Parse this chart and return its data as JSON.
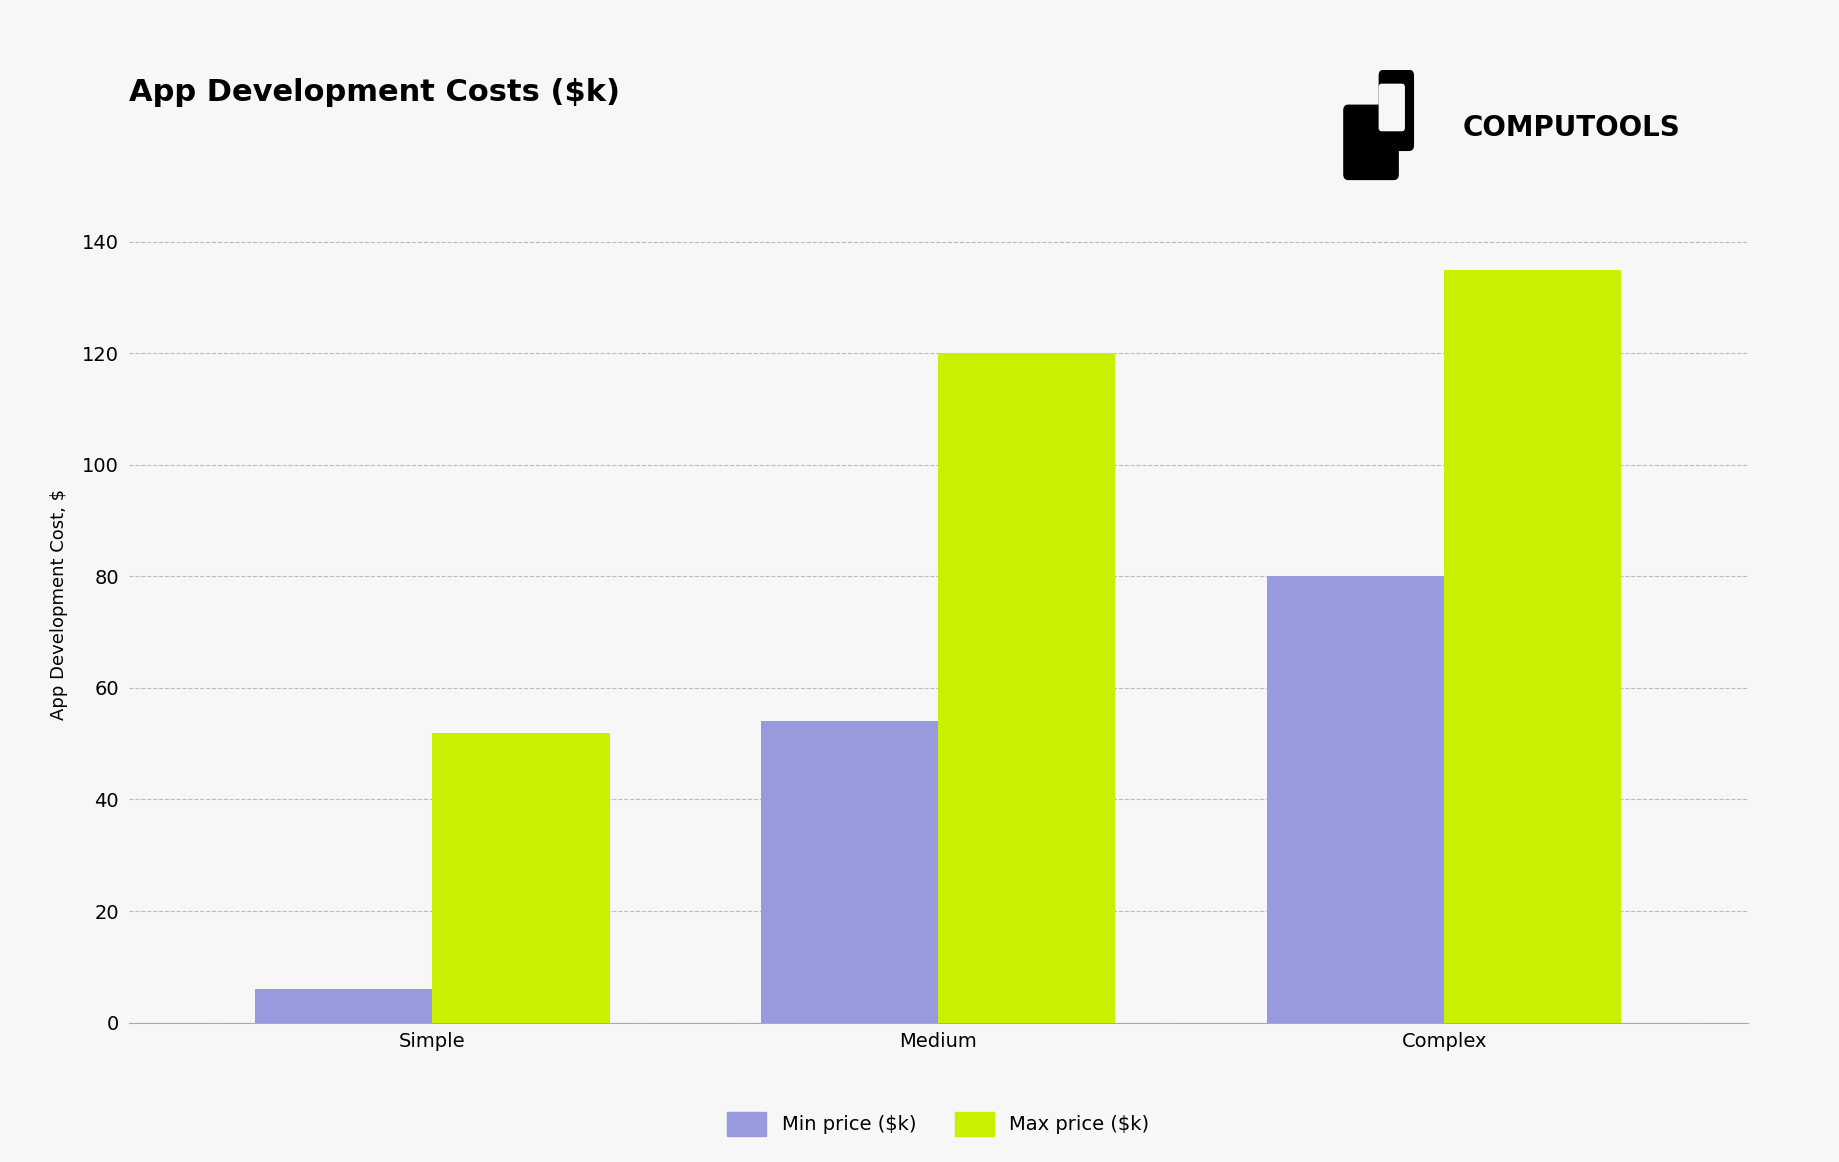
{
  "title": "App Development Costs ($k)",
  "ylabel": "App Development Cost, $",
  "categories": [
    "Simple",
    "Medium",
    "Complex"
  ],
  "min_values": [
    6,
    54,
    80
  ],
  "max_values": [
    52,
    120,
    135
  ],
  "min_color": "#9999dd",
  "max_color": "#c8f000",
  "bar_width": 0.35,
  "ylim": [
    0,
    150
  ],
  "yticks": [
    0,
    20,
    40,
    60,
    80,
    100,
    120,
    140
  ],
  "legend_labels": [
    "Min price ($k)",
    "Max price ($k)"
  ],
  "background_color": "#f7f7f7",
  "title_fontsize": 22,
  "tick_fontsize": 14,
  "label_fontsize": 13,
  "legend_fontsize": 14,
  "brand_text": "COMPUTOOLS",
  "brand_fontsize": 20
}
